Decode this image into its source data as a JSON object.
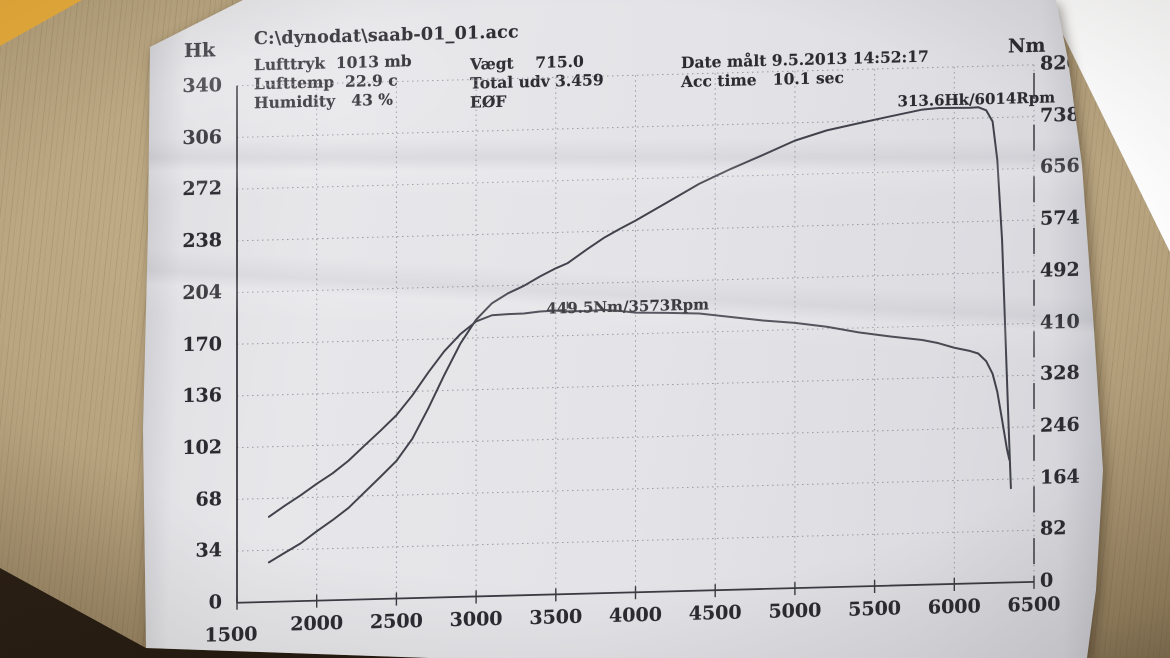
{
  "panel": {
    "file_path": "C:\\dynodat\\saab-01_01.acc",
    "col1": [
      "Lufttryk  1013 mb",
      "Lufttemp  22.9 c",
      "Humidity   43 %"
    ],
    "col2": [
      "Vægt    715.0",
      "Total udv 3.459",
      "EØF"
    ],
    "col3": [
      "Date målt 9.5.2013 14:52:17",
      "Acc time   10.1 sec"
    ]
  },
  "chart_data": {
    "type": "line",
    "title": "C:\\dynodat\\saab-01_01.acc",
    "xlabel": "",
    "grid": "dashed",
    "x": {
      "min": 1500,
      "max": 6500,
      "ticks": [
        1500,
        2000,
        2500,
        3000,
        3500,
        4000,
        4500,
        5000,
        5500,
        6000,
        6500
      ]
    },
    "left_axis": {
      "label": "Hk",
      "min": 0,
      "max": 340,
      "ticks": [
        0,
        34,
        68,
        102,
        136,
        170,
        204,
        238,
        272,
        306,
        340
      ]
    },
    "right_axis": {
      "label": "Nm",
      "min": 0,
      "max": 820,
      "ticks": [
        0,
        82,
        164,
        246,
        328,
        410,
        492,
        574,
        656,
        738,
        820
      ]
    },
    "series": [
      {
        "name": "Hk",
        "axis": "left",
        "peak": {
          "rpm": 6014,
          "value": 313.6
        },
        "points": [
          [
            1700,
            26
          ],
          [
            1800,
            32
          ],
          [
            1900,
            38
          ],
          [
            2000,
            45
          ],
          [
            2100,
            53
          ],
          [
            2200,
            61
          ],
          [
            2300,
            70
          ],
          [
            2400,
            80
          ],
          [
            2500,
            91
          ],
          [
            2600,
            105
          ],
          [
            2700,
            124
          ],
          [
            2800,
            146
          ],
          [
            2900,
            167
          ],
          [
            3000,
            182
          ],
          [
            3100,
            192
          ],
          [
            3200,
            199
          ],
          [
            3300,
            204
          ],
          [
            3400,
            209
          ],
          [
            3500,
            214
          ],
          [
            3573,
            218
          ],
          [
            3700,
            227
          ],
          [
            3800,
            233
          ],
          [
            3900,
            239
          ],
          [
            4000,
            245
          ],
          [
            4200,
            256
          ],
          [
            4400,
            267
          ],
          [
            4600,
            277
          ],
          [
            4800,
            286
          ],
          [
            5000,
            294
          ],
          [
            5200,
            300
          ],
          [
            5400,
            305
          ],
          [
            5600,
            309
          ],
          [
            5800,
            312
          ],
          [
            5900,
            313
          ],
          [
            6014,
            313.6
          ],
          [
            6100,
            313
          ],
          [
            6150,
            312.5
          ],
          [
            6200,
            311
          ],
          [
            6240,
            304
          ],
          [
            6270,
            278
          ],
          [
            6300,
            225
          ],
          [
            6320,
            165
          ],
          [
            6340,
            105
          ],
          [
            6355,
            62
          ]
        ]
      },
      {
        "name": "Nm",
        "axis": "right",
        "peak": {
          "rpm": 3573,
          "value": 449.5
        },
        "points": [
          [
            1700,
            135
          ],
          [
            1800,
            152
          ],
          [
            1900,
            168
          ],
          [
            2000,
            184
          ],
          [
            2100,
            202
          ],
          [
            2200,
            222
          ],
          [
            2300,
            243
          ],
          [
            2400,
            266
          ],
          [
            2500,
            292
          ],
          [
            2600,
            322
          ],
          [
            2700,
            356
          ],
          [
            2800,
            390
          ],
          [
            2900,
            418
          ],
          [
            3000,
            436
          ],
          [
            3100,
            444
          ],
          [
            3200,
            447
          ],
          [
            3300,
            448
          ],
          [
            3400,
            448.5
          ],
          [
            3500,
            449
          ],
          [
            3573,
            449.5
          ],
          [
            3700,
            449
          ],
          [
            3800,
            448
          ],
          [
            3900,
            446.5
          ],
          [
            4000,
            445
          ],
          [
            4200,
            442
          ],
          [
            4400,
            438
          ],
          [
            4600,
            433
          ],
          [
            4800,
            427
          ],
          [
            5000,
            420
          ],
          [
            5200,
            412
          ],
          [
            5400,
            404
          ],
          [
            5600,
            396
          ],
          [
            5800,
            387
          ],
          [
            5900,
            382
          ],
          [
            6000,
            376
          ],
          [
            6100,
            369
          ],
          [
            6150,
            363
          ],
          [
            6200,
            352
          ],
          [
            6240,
            333
          ],
          [
            6270,
            303
          ],
          [
            6300,
            258
          ],
          [
            6330,
            212
          ],
          [
            6345,
            195
          ]
        ]
      }
    ],
    "annotations": [
      {
        "text": "313.6Hk/6014Rpm",
        "rpm": 6014,
        "value": 313.6,
        "axis": "left"
      },
      {
        "text": "449.5Nm/3573Rpm",
        "rpm": 3573,
        "value": 449.5,
        "axis": "right"
      }
    ]
  }
}
